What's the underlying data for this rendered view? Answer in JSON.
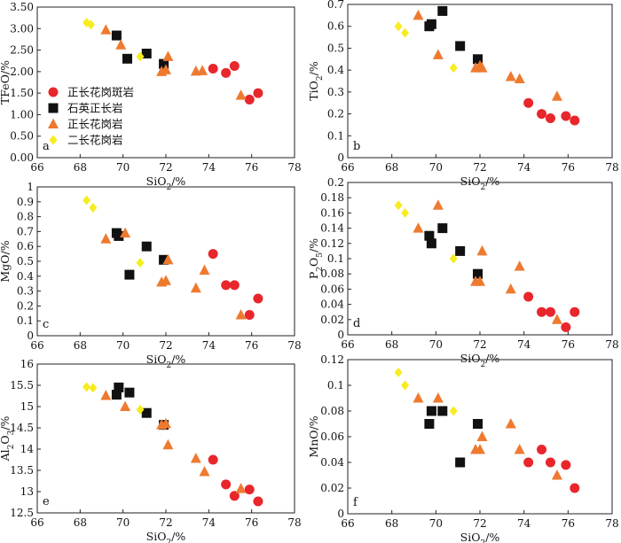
{
  "chart_data": [
    {
      "id": "a",
      "panel_label": "a",
      "type": "scatter",
      "xlabel": "SiO2/%",
      "ylabel": "TFeO/%",
      "xlim": [
        66,
        78
      ],
      "ylim": [
        0,
        3.5
      ],
      "xticks": [
        "66",
        "68",
        "70",
        "72",
        "74",
        "76",
        "78"
      ],
      "yticks": [
        "0.00",
        "0.50",
        "1.00",
        "1.50",
        "2.00",
        "2.50",
        "3.00",
        "3.50"
      ],
      "series": [
        {
          "name": "正长花岗斑岩",
          "points": [
            [
              74.2,
              2.07
            ],
            [
              74.8,
              1.97
            ],
            [
              75.2,
              2.13
            ],
            [
              75.9,
              1.35
            ],
            [
              76.3,
              1.5
            ]
          ]
        },
        {
          "name": "石英正长岩",
          "points": [
            [
              69.7,
              2.84
            ],
            [
              70.2,
              2.3
            ],
            [
              71.1,
              2.42
            ],
            [
              71.9,
              2.18
            ]
          ]
        },
        {
          "name": "正长花岗岩",
          "points": [
            [
              69.2,
              2.97
            ],
            [
              69.9,
              2.62
            ],
            [
              71.8,
              2.0
            ],
            [
              72.0,
              2.04
            ],
            [
              72.1,
              2.35
            ],
            [
              73.4,
              2.01
            ],
            [
              73.7,
              2.02
            ],
            [
              75.5,
              1.45
            ]
          ]
        },
        {
          "name": "二长花岗岩",
          "points": [
            [
              68.3,
              3.14
            ],
            [
              68.5,
              3.09
            ],
            [
              70.8,
              2.35
            ]
          ]
        }
      ],
      "legend": {
        "placement": "middle-left",
        "entries": [
          "正长花岗斑岩",
          "石英正长岩",
          "正长花岗岩",
          "二长花岗岩"
        ]
      }
    },
    {
      "id": "b",
      "panel_label": "b",
      "type": "scatter",
      "xlabel": "SiO2/%",
      "ylabel": "TiO2/%",
      "xlim": [
        66,
        78
      ],
      "ylim": [
        0,
        0.7
      ],
      "xticks": [
        "66",
        "68",
        "70",
        "72",
        "74",
        "76",
        "78"
      ],
      "yticks": [
        "0",
        "0.1",
        "0.2",
        "0.3",
        "0.4",
        "0.5",
        "0.6",
        "0.7"
      ],
      "series": [
        {
          "name": "正长花岗斑岩",
          "points": [
            [
              74.2,
              0.25
            ],
            [
              74.8,
              0.2
            ],
            [
              75.2,
              0.18
            ],
            [
              75.9,
              0.19
            ],
            [
              76.3,
              0.17
            ]
          ]
        },
        {
          "name": "石英正长岩",
          "points": [
            [
              69.7,
              0.6
            ],
            [
              69.8,
              0.61
            ],
            [
              70.3,
              0.67
            ],
            [
              71.1,
              0.51
            ],
            [
              71.9,
              0.45
            ]
          ]
        },
        {
          "name": "正长花岗岩",
          "points": [
            [
              69.2,
              0.65
            ],
            [
              70.1,
              0.47
            ],
            [
              71.8,
              0.41
            ],
            [
              72.0,
              0.42
            ],
            [
              72.1,
              0.41
            ],
            [
              73.4,
              0.37
            ],
            [
              73.8,
              0.36
            ],
            [
              75.5,
              0.28
            ]
          ]
        },
        {
          "name": "二长花岗岩",
          "points": [
            [
              68.3,
              0.6
            ],
            [
              68.6,
              0.57
            ],
            [
              70.8,
              0.41
            ]
          ]
        }
      ]
    },
    {
      "id": "c",
      "panel_label": "c",
      "type": "scatter",
      "xlabel": "SiO2/%",
      "ylabel": "MgO/%",
      "xlim": [
        66,
        78
      ],
      "ylim": [
        0,
        1
      ],
      "xticks": [
        "66",
        "68",
        "70",
        "72",
        "74",
        "76",
        "78"
      ],
      "yticks": [
        "0",
        "0.1",
        "0.2",
        "0.3",
        "0.4",
        "0.5",
        "0.6",
        "0.7",
        "0.8",
        "0.9",
        "1"
      ],
      "series": [
        {
          "name": "正长花岗斑岩",
          "points": [
            [
              74.2,
              0.55
            ],
            [
              74.8,
              0.34
            ],
            [
              75.2,
              0.34
            ],
            [
              75.9,
              0.14
            ],
            [
              76.3,
              0.25
            ]
          ]
        },
        {
          "name": "石英正长岩",
          "points": [
            [
              69.7,
              0.69
            ],
            [
              69.8,
              0.67
            ],
            [
              70.3,
              0.41
            ],
            [
              71.1,
              0.6
            ],
            [
              71.9,
              0.51
            ]
          ]
        },
        {
          "name": "正长花岗岩",
          "points": [
            [
              69.2,
              0.65
            ],
            [
              70.1,
              0.69
            ],
            [
              71.8,
              0.36
            ],
            [
              72.0,
              0.37
            ],
            [
              72.1,
              0.51
            ],
            [
              73.4,
              0.32
            ],
            [
              73.8,
              0.44
            ],
            [
              75.5,
              0.14
            ]
          ]
        },
        {
          "name": "二长花岗岩",
          "points": [
            [
              68.3,
              0.91
            ],
            [
              68.6,
              0.86
            ],
            [
              70.8,
              0.49
            ]
          ]
        }
      ]
    },
    {
      "id": "d",
      "panel_label": "d",
      "type": "scatter",
      "xlabel": "SiO2/%",
      "ylabel": "P2O5/%",
      "xlim": [
        66,
        78
      ],
      "ylim": [
        0,
        0.2
      ],
      "xticks": [
        "66",
        "68",
        "70",
        "72",
        "74",
        "76",
        "78"
      ],
      "yticks": [
        "0",
        "0.02",
        "0.04",
        "0.06",
        "0.08",
        "0.1",
        "0.12",
        "0.14",
        "0.16",
        "0.18",
        "0.2"
      ],
      "series": [
        {
          "name": "正长花岗斑岩",
          "points": [
            [
              74.2,
              0.05
            ],
            [
              74.8,
              0.03
            ],
            [
              75.2,
              0.03
            ],
            [
              75.9,
              0.01
            ],
            [
              76.3,
              0.03
            ]
          ]
        },
        {
          "name": "石英正长岩",
          "points": [
            [
              69.7,
              0.13
            ],
            [
              69.8,
              0.12
            ],
            [
              70.3,
              0.14
            ],
            [
              71.1,
              0.11
            ],
            [
              71.9,
              0.08
            ]
          ]
        },
        {
          "name": "正长花岗岩",
          "points": [
            [
              69.2,
              0.14
            ],
            [
              70.1,
              0.17
            ],
            [
              71.8,
              0.07
            ],
            [
              72.0,
              0.07
            ],
            [
              72.1,
              0.11
            ],
            [
              73.4,
              0.06
            ],
            [
              73.8,
              0.09
            ],
            [
              75.5,
              0.02
            ]
          ]
        },
        {
          "name": "二长花岗岩",
          "points": [
            [
              68.3,
              0.17
            ],
            [
              68.6,
              0.16
            ],
            [
              70.8,
              0.1
            ]
          ]
        }
      ]
    },
    {
      "id": "e",
      "panel_label": "e",
      "type": "scatter",
      "xlabel": "SiO2/%",
      "ylabel": "Al2O3/%",
      "xlim": [
        66,
        78
      ],
      "ylim": [
        12.5,
        16
      ],
      "xticks": [
        "66",
        "68",
        "70",
        "72",
        "74",
        "76",
        "78"
      ],
      "yticks": [
        "12.5",
        "13",
        "13.5",
        "14",
        "14.5",
        "15",
        "15.5",
        "16"
      ],
      "series": [
        {
          "name": "正长花岗斑岩",
          "points": [
            [
              74.2,
              13.75
            ],
            [
              74.8,
              13.17
            ],
            [
              75.2,
              12.9
            ],
            [
              75.9,
              13.05
            ],
            [
              76.3,
              12.77
            ]
          ]
        },
        {
          "name": "石英正长岩",
          "points": [
            [
              69.7,
              15.28
            ],
            [
              69.8,
              15.45
            ],
            [
              70.3,
              15.33
            ],
            [
              71.1,
              14.85
            ],
            [
              71.9,
              14.57
            ]
          ]
        },
        {
          "name": "正长花岗岩",
          "points": [
            [
              69.2,
              15.26
            ],
            [
              70.1,
              15.0
            ],
            [
              71.8,
              14.57
            ],
            [
              72.0,
              14.6
            ],
            [
              72.1,
              14.1
            ],
            [
              73.4,
              13.78
            ],
            [
              73.8,
              13.47
            ],
            [
              75.5,
              13.07
            ]
          ]
        },
        {
          "name": "二长花岗岩",
          "points": [
            [
              68.3,
              15.46
            ],
            [
              68.6,
              15.44
            ],
            [
              70.8,
              14.93
            ]
          ]
        }
      ]
    },
    {
      "id": "f",
      "panel_label": "f",
      "type": "scatter",
      "xlabel": "SiO2/%",
      "ylabel": "MnO/%",
      "xlim": [
        66,
        78
      ],
      "ylim": [
        0,
        0.12
      ],
      "xticks": [
        "66",
        "68",
        "70",
        "72",
        "74",
        "76",
        "78"
      ],
      "yticks": [
        "0",
        "0.02",
        "0.04",
        "0.06",
        "0.08",
        "0.1",
        "0.12"
      ],
      "series": [
        {
          "name": "正长花岗斑岩",
          "points": [
            [
              74.2,
              0.04
            ],
            [
              74.8,
              0.05
            ],
            [
              75.2,
              0.04
            ],
            [
              75.9,
              0.038
            ],
            [
              76.3,
              0.02
            ]
          ]
        },
        {
          "name": "石英正长岩",
          "points": [
            [
              69.7,
              0.07
            ],
            [
              69.8,
              0.08
            ],
            [
              70.3,
              0.08
            ],
            [
              71.1,
              0.04
            ],
            [
              71.9,
              0.07
            ]
          ]
        },
        {
          "name": "正长花岗岩",
          "points": [
            [
              69.2,
              0.09
            ],
            [
              70.1,
              0.09
            ],
            [
              71.8,
              0.05
            ],
            [
              72.0,
              0.05
            ],
            [
              72.1,
              0.06
            ],
            [
              73.4,
              0.07
            ],
            [
              73.8,
              0.05
            ],
            [
              75.5,
              0.03
            ]
          ]
        },
        {
          "name": "二长花岗岩",
          "points": [
            [
              68.3,
              0.11
            ],
            [
              68.6,
              0.1
            ],
            [
              70.8,
              0.08
            ]
          ]
        }
      ]
    }
  ],
  "series_style": {
    "正长花岗斑岩": {
      "marker": "circle",
      "color": "#e8262b"
    },
    "石英正长岩": {
      "marker": "square",
      "color": "#111111"
    },
    "正长花岗岩": {
      "marker": "triangle",
      "color": "#ee7a30"
    },
    "二长花岗岩": {
      "marker": "diamond",
      "color": "#f6ec20"
    }
  }
}
